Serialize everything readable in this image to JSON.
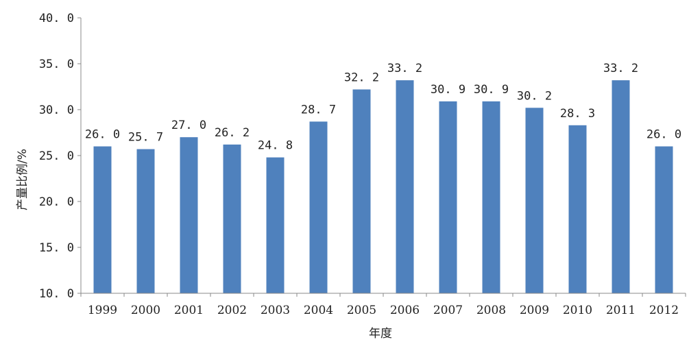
{
  "chart_data": {
    "type": "bar",
    "categories": [
      "1999",
      "2000",
      "2001",
      "2002",
      "2003",
      "2004",
      "2005",
      "2006",
      "2007",
      "2008",
      "2009",
      "2010",
      "2011",
      "2012"
    ],
    "values": [
      26.0,
      25.7,
      27.0,
      26.2,
      24.8,
      28.7,
      32.2,
      33.2,
      30.9,
      30.9,
      30.2,
      28.3,
      33.2,
      26.0
    ],
    "value_labels": [
      "26. 0",
      "25. 7",
      "27. 0",
      "26. 2",
      "24. 8",
      "28. 7",
      "32. 2",
      "33. 2",
      "30. 9",
      "30. 9",
      "30. 2",
      "28. 3",
      "33. 2",
      "26. 0"
    ],
    "xlabel": "年度",
    "ylabel": "产量比例/%",
    "ylim": [
      10,
      40
    ],
    "yticks": [
      10,
      15,
      20,
      25,
      30,
      35,
      40
    ],
    "ytick_labels": [
      "10. 0",
      "15. 0",
      "20. 0",
      "25. 0",
      "30. 0",
      "35. 0",
      "40. 0"
    ],
    "bar_color": "#4f81bd",
    "grid": false,
    "legend": "none"
  }
}
